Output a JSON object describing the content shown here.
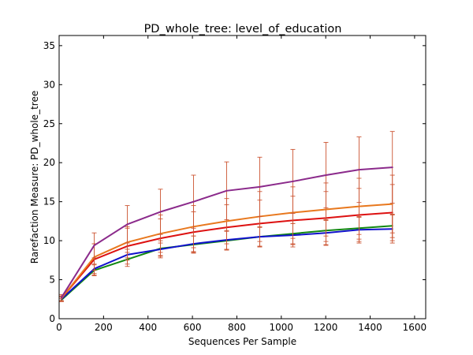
{
  "chart_data": {
    "type": "line",
    "title": "PD_whole_tree: level_of_education",
    "xlabel": "Sequences Per Sample",
    "ylabel": "Rarefaction Measure: PD_whole_tree",
    "xlim": [
      0,
      1650
    ],
    "ylim": [
      0,
      36.3
    ],
    "xticks": [
      0,
      200,
      400,
      600,
      800,
      1000,
      1200,
      1400,
      1600
    ],
    "yticks": [
      0,
      5,
      10,
      15,
      20,
      25,
      30,
      35
    ],
    "x": [
      10,
      158,
      307,
      456,
      605,
      754,
      903,
      1052,
      1201,
      1350,
      1500
    ],
    "grid": false,
    "legend": "none",
    "error_bar_color": "#cc5533",
    "series": [
      {
        "color": "#8b2a8b",
        "values": [
          2.7,
          9.4,
          12.1,
          13.7,
          15.0,
          16.4,
          16.9,
          17.6,
          18.4,
          19.1,
          19.4
        ],
        "errors": [
          0.4,
          1.6,
          2.4,
          2.9,
          3.4,
          3.7,
          3.8,
          4.1,
          4.2,
          4.2,
          4.6
        ]
      },
      {
        "color": "#e8781e",
        "values": [
          2.6,
          7.9,
          9.8,
          10.9,
          11.8,
          12.5,
          13.1,
          13.6,
          14.0,
          14.4,
          14.7
        ],
        "errors": [
          0.3,
          1.7,
          2.0,
          2.4,
          2.7,
          2.9,
          3.2,
          3.3,
          3.4,
          3.6,
          3.7
        ]
      },
      {
        "color": "#dd1111",
        "values": [
          2.6,
          7.6,
          9.3,
          10.3,
          11.1,
          11.7,
          12.2,
          12.6,
          12.9,
          13.3,
          13.6
        ],
        "errors": [
          0.3,
          2.0,
          2.3,
          2.5,
          2.6,
          2.9,
          3.0,
          3.1,
          3.4,
          3.4,
          3.6
        ]
      },
      {
        "color": "#1111cc",
        "values": [
          2.5,
          6.4,
          8.2,
          8.9,
          9.6,
          10.1,
          10.5,
          10.7,
          11.0,
          11.4,
          11.5
        ],
        "errors": [
          0.3,
          0.6,
          0.7,
          0.8,
          1.0,
          1.2,
          1.3,
          1.5,
          1.6,
          1.7,
          1.8
        ]
      },
      {
        "color": "#118811",
        "values": [
          2.4,
          6.2,
          7.6,
          9.0,
          9.5,
          10.0,
          10.5,
          10.9,
          11.3,
          11.6,
          11.9
        ],
        "errors": [
          0.2,
          0.7,
          0.9,
          1.0,
          1.1,
          1.2,
          1.2,
          1.3,
          1.4,
          1.4,
          1.5
        ]
      }
    ]
  }
}
